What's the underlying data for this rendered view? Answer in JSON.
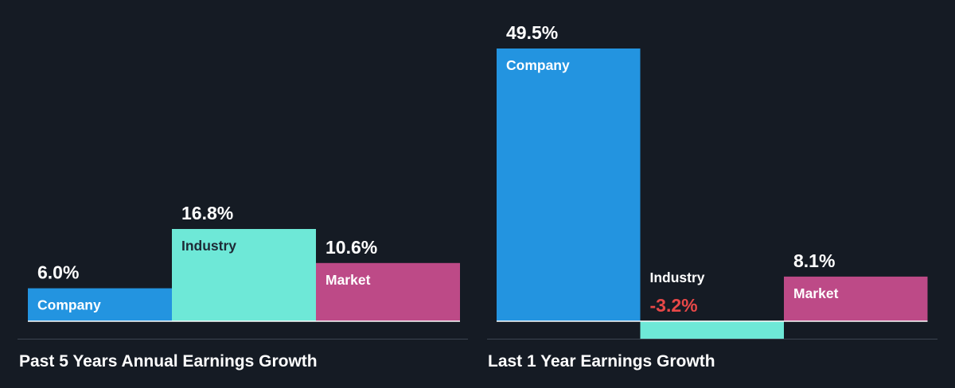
{
  "colors": {
    "background": "#151b24",
    "company": "#2394e0",
    "industry": "#6ee8d7",
    "market": "#bd4a87",
    "negative_text": "#e84848",
    "text": "#ffffff",
    "dark_text": "#1e2a36",
    "axis": "#ffffff"
  },
  "chart_data": [
    {
      "type": "bar",
      "title": "Past 5 Years Annual Earnings Growth",
      "categories": [
        "Company",
        "Industry",
        "Market"
      ],
      "values": [
        6.0,
        16.8,
        10.6
      ],
      "value_labels": [
        "6.0%",
        "16.8%",
        "10.6%"
      ],
      "ylim": [
        0,
        16.8
      ],
      "grid": false,
      "legend": "none"
    },
    {
      "type": "bar",
      "title": "Last 1 Year Earnings Growth",
      "categories": [
        "Company",
        "Industry",
        "Market"
      ],
      "values": [
        49.5,
        -3.2,
        8.1
      ],
      "value_labels": [
        "49.5%",
        "-3.2%",
        "8.1%"
      ],
      "ylim": [
        -3.2,
        49.5
      ],
      "grid": false,
      "legend": "none"
    }
  ]
}
